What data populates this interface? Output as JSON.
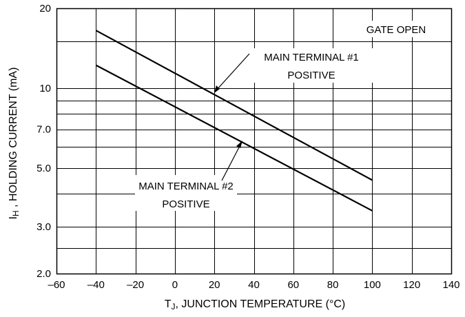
{
  "chart_data": {
    "type": "line",
    "title": "",
    "xlabel": {
      "main": "T",
      "sub": "J",
      "rest": ", JUNCTION TEMPERATURE (°C)"
    },
    "ylabel": {
      "main": "I",
      "sub": "H",
      "rest": " , HOLDING CURRENT (mA)"
    },
    "xlim": [
      -60,
      140
    ],
    "ylim": [
      2.0,
      20
    ],
    "y_scale": "log",
    "grid": true,
    "x_ticks": [
      -60,
      -40,
      -20,
      0,
      20,
      40,
      60,
      80,
      100,
      120,
      140
    ],
    "x_tick_labels": [
      "–60",
      "–40",
      "–20",
      "0",
      "20",
      "40",
      "60",
      "80",
      "100",
      "120",
      "140"
    ],
    "y_tick_labeled": [
      {
        "value": 2.0,
        "label": "2.0"
      },
      {
        "value": 3.0,
        "label": "3.0"
      },
      {
        "value": 5.0,
        "label": "5.0"
      },
      {
        "value": 7.0,
        "label": "7.0"
      },
      {
        "value": 10,
        "label": "10"
      },
      {
        "value": 20,
        "label": "20"
      }
    ],
    "y_grid_values": [
      2.0,
      2.5,
      3.0,
      4.0,
      5.0,
      6.0,
      7.0,
      8.0,
      9.0,
      10,
      15,
      20
    ],
    "series": [
      {
        "x": [
          -40,
          100
        ],
        "y": [
          16.5,
          4.5
        ]
      },
      {
        "x": [
          -40,
          100
        ],
        "y": [
          12.2,
          3.45
        ]
      }
    ],
    "annotations": {
      "gate_open": "GATE OPEN",
      "mt1_line1": "MAIN TERMINAL #1",
      "mt1_line2": "POSITIVE",
      "mt2_line1": "MAIN TERMINAL #2",
      "mt2_line2": "POSITIVE"
    }
  }
}
